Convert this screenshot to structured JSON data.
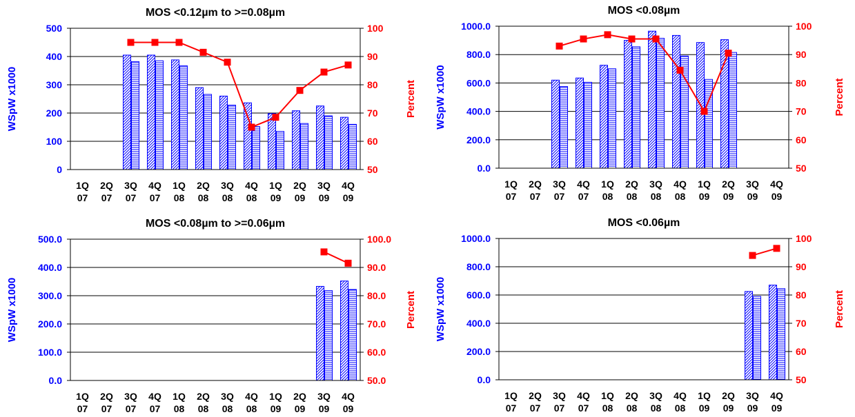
{
  "chart_data": [
    {
      "type": "bar+line",
      "title": "MOS <0.12µm to >=0.08µm",
      "ylabel": "WSpW x1000",
      "y2label": "Percent",
      "ylim": [
        0,
        500
      ],
      "y2lim": [
        50,
        100
      ],
      "yticks": [
        "0",
        "100",
        "200",
        "300",
        "400",
        "500"
      ],
      "y2ticks": [
        "50",
        "60",
        "70",
        "80",
        "90",
        "100"
      ],
      "categories": [
        [
          "1Q",
          "07"
        ],
        [
          "2Q",
          "07"
        ],
        [
          "3Q",
          "07"
        ],
        [
          "4Q",
          "07"
        ],
        [
          "1Q",
          "08"
        ],
        [
          "2Q",
          "08"
        ],
        [
          "3Q",
          "08"
        ],
        [
          "4Q",
          "08"
        ],
        [
          "1Q",
          "09"
        ],
        [
          "2Q",
          "09"
        ],
        [
          "3Q",
          "09"
        ],
        [
          "4Q",
          "09"
        ]
      ],
      "bar_series": [
        {
          "values": [
            null,
            null,
            405,
            405,
            388,
            290,
            260,
            236,
            198,
            208,
            225,
            185
          ]
        },
        {
          "values": [
            null,
            null,
            382,
            385,
            367,
            266,
            228,
            152,
            135,
            163,
            190,
            160
          ]
        }
      ],
      "line_series": {
        "values": [
          null,
          null,
          95,
          95,
          95,
          91.5,
          88,
          65,
          68.5,
          78,
          84.5,
          87
        ]
      },
      "colors": {
        "bar": "#0000ff",
        "line": "#ff0000",
        "left_axis": "#0000ff",
        "right_axis": "#ff0000"
      }
    },
    {
      "type": "bar+line",
      "title": "MOS <0.08µm",
      "ylabel": "WSpW x1000",
      "y2label": "Percent",
      "ylim": [
        0,
        1000
      ],
      "y2lim": [
        50,
        100
      ],
      "yticks": [
        "0.0",
        "200.0",
        "400.0",
        "600.0",
        "800.0",
        "1000.0"
      ],
      "y2ticks": [
        "50",
        "60",
        "70",
        "80",
        "90",
        "100"
      ],
      "categories": [
        [
          "1Q",
          "07"
        ],
        [
          "2Q",
          "07"
        ],
        [
          "3Q",
          "07"
        ],
        [
          "4Q",
          "07"
        ],
        [
          "1Q",
          "08"
        ],
        [
          "2Q",
          "08"
        ],
        [
          "3Q",
          "08"
        ],
        [
          "4Q",
          "08"
        ],
        [
          "1Q",
          "09"
        ],
        [
          "2Q",
          "09"
        ],
        [
          "3Q",
          "09"
        ],
        [
          "4Q",
          "09"
        ]
      ],
      "bar_series": [
        {
          "values": [
            null,
            null,
            620,
            635,
            725,
            900,
            965,
            935,
            885,
            905,
            null,
            null
          ]
        },
        {
          "values": [
            null,
            null,
            575,
            605,
            700,
            855,
            915,
            790,
            625,
            815,
            null,
            null
          ]
        }
      ],
      "line_series": {
        "values": [
          null,
          null,
          93,
          95.5,
          97,
          95.5,
          95.5,
          84.5,
          70,
          90.5,
          null,
          null
        ]
      },
      "colors": {
        "bar": "#0000ff",
        "line": "#ff0000",
        "left_axis": "#0000ff",
        "right_axis": "#ff0000"
      }
    },
    {
      "type": "bar+line",
      "title": "MOS <0.08µm to >=0.06µm",
      "ylabel": "WSpW x1000",
      "y2label": "Percent",
      "ylim": [
        0,
        500
      ],
      "y2lim": [
        50,
        100
      ],
      "yticks": [
        "0.0",
        "100.0",
        "200.0",
        "300.0",
        "400.0",
        "500.0"
      ],
      "y2ticks": [
        "50.0",
        "60.0",
        "70.0",
        "80.0",
        "90.0",
        "100.0"
      ],
      "categories": [
        [
          "1Q",
          "07"
        ],
        [
          "2Q",
          "07"
        ],
        [
          "3Q",
          "07"
        ],
        [
          "4Q",
          "07"
        ],
        [
          "1Q",
          "08"
        ],
        [
          "2Q",
          "08"
        ],
        [
          "3Q",
          "08"
        ],
        [
          "4Q",
          "08"
        ],
        [
          "1Q",
          "09"
        ],
        [
          "2Q",
          "09"
        ],
        [
          "3Q",
          "09"
        ],
        [
          "4Q",
          "09"
        ]
      ],
      "bar_series": [
        {
          "values": [
            null,
            null,
            null,
            null,
            null,
            null,
            null,
            null,
            null,
            null,
            333,
            352
          ]
        },
        {
          "values": [
            null,
            null,
            null,
            null,
            null,
            null,
            null,
            null,
            null,
            null,
            318,
            322
          ]
        }
      ],
      "line_series": {
        "values": [
          null,
          null,
          null,
          null,
          null,
          null,
          null,
          null,
          null,
          null,
          95.5,
          91.5
        ]
      },
      "colors": {
        "bar": "#0000ff",
        "line": "#ff0000",
        "left_axis": "#0000ff",
        "right_axis": "#ff0000"
      }
    },
    {
      "type": "bar+line",
      "title": "MOS <0.06µm",
      "ylabel": "WSpW x1000",
      "y2label": "Percent",
      "ylim": [
        0,
        1000
      ],
      "y2lim": [
        50,
        100
      ],
      "yticks": [
        "0.0",
        "200.0",
        "400.0",
        "600.0",
        "800.0",
        "1000.0"
      ],
      "y2ticks": [
        "50",
        "60",
        "70",
        "80",
        "90",
        "100"
      ],
      "categories": [
        [
          "1Q",
          "07"
        ],
        [
          "2Q",
          "07"
        ],
        [
          "3Q",
          "07"
        ],
        [
          "4Q",
          "07"
        ],
        [
          "1Q",
          "08"
        ],
        [
          "2Q",
          "08"
        ],
        [
          "3Q",
          "08"
        ],
        [
          "4Q",
          "08"
        ],
        [
          "1Q",
          "09"
        ],
        [
          "2Q",
          "09"
        ],
        [
          "3Q",
          "09"
        ],
        [
          "4Q",
          "09"
        ]
      ],
      "bar_series": [
        {
          "values": [
            null,
            null,
            null,
            null,
            null,
            null,
            null,
            null,
            null,
            null,
            625,
            670
          ]
        },
        {
          "values": [
            null,
            null,
            null,
            null,
            null,
            null,
            null,
            null,
            null,
            null,
            590,
            645
          ]
        }
      ],
      "line_series": {
        "values": [
          null,
          null,
          null,
          null,
          null,
          null,
          null,
          null,
          null,
          null,
          94,
          96.5
        ]
      },
      "colors": {
        "bar": "#0000ff",
        "line": "#ff0000",
        "left_axis": "#0000ff",
        "right_axis": "#ff0000"
      }
    }
  ]
}
